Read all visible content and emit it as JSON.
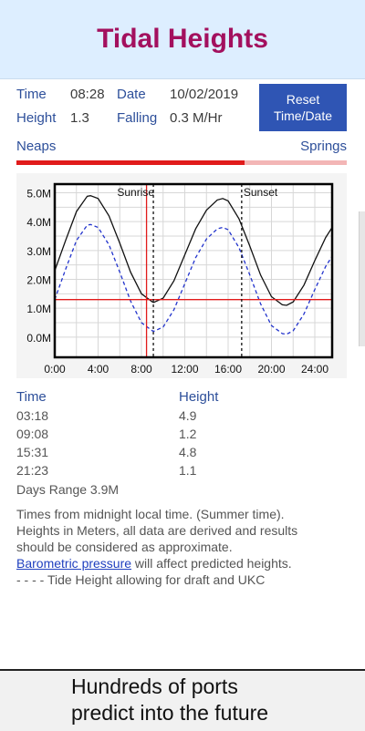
{
  "header": {
    "title": "Tidal Heights"
  },
  "info": {
    "time_label": "Time",
    "time_value": "08:28",
    "date_label": "Date",
    "date_value": "10/02/2019",
    "height_label": "Height",
    "height_value": "1.3",
    "trend_label": "Falling",
    "trend_value": "0.3 M/Hr",
    "reset_line1": "Reset",
    "reset_line2": "Time/Date"
  },
  "tide_cycle": {
    "left_label": "Neaps",
    "right_label": "Springs",
    "position": 0.69
  },
  "chart_data": {
    "type": "line",
    "x_tick_labels": [
      "0:00",
      "4:00",
      "8:00",
      "12:00",
      "16:00",
      "20:00",
      "24:00"
    ],
    "y_tick_labels": [
      "0.0M",
      "1.0M",
      "2.0M",
      "3.0M",
      "4.0M",
      "5.0M"
    ],
    "xlim": [
      0,
      25.6
    ],
    "ylim": [
      -0.7,
      5.3
    ],
    "series": [
      {
        "x": [
          0,
          1,
          2,
          3,
          3.3,
          4,
          5,
          6,
          7,
          8,
          9,
          9.13,
          10,
          11,
          12,
          13,
          14,
          15,
          15.5,
          16,
          17,
          18,
          19,
          20,
          21,
          21.4,
          22,
          23,
          24,
          25,
          25.6
        ],
        "y": [
          2.3,
          3.35,
          4.35,
          4.88,
          4.9,
          4.8,
          4.2,
          3.25,
          2.25,
          1.5,
          1.22,
          1.2,
          1.35,
          1.95,
          2.85,
          3.75,
          4.4,
          4.75,
          4.8,
          4.72,
          4.1,
          3.15,
          2.15,
          1.4,
          1.12,
          1.1,
          1.22,
          1.8,
          2.65,
          3.45,
          3.8
        ]
      },
      {
        "dashed": true,
        "x": [
          0,
          1,
          2,
          3,
          3.3,
          4,
          5,
          6,
          7,
          8,
          9,
          9.13,
          10,
          11,
          12,
          13,
          14,
          15,
          15.5,
          16,
          17,
          18,
          19,
          20,
          21,
          21.4,
          22,
          23,
          24,
          25,
          25.6
        ],
        "y": [
          1.3,
          2.35,
          3.35,
          3.88,
          3.9,
          3.8,
          3.2,
          2.25,
          1.25,
          0.5,
          0.22,
          0.2,
          0.35,
          0.95,
          1.85,
          2.75,
          3.4,
          3.75,
          3.8,
          3.72,
          3.1,
          2.15,
          1.15,
          0.4,
          0.12,
          0.1,
          0.22,
          0.8,
          1.65,
          2.45,
          2.8
        ]
      }
    ],
    "current_time": 8.47,
    "current_height": 1.3,
    "sunrise": {
      "label": "Sunrise",
      "x": 9.1
    },
    "sunset": {
      "label": "Sunset",
      "x": 17.25
    },
    "grid": true
  },
  "table": {
    "time_header": "Time",
    "height_header": "Height",
    "rows": [
      {
        "time": "03:18",
        "height": "4.9"
      },
      {
        "time": "09:08",
        "height": "1.2"
      },
      {
        "time": "15:31",
        "height": "4.8"
      },
      {
        "time": "21:23",
        "height": "1.1"
      }
    ],
    "range_text": "Days Range 3.9M"
  },
  "notes": {
    "line1": "Times from midnight local time. (Summer time).",
    "line2": "Heights in Meters, all data are derived and results",
    "line3": "should be considered as approximate.",
    "link_text": "Barometric pressure",
    "link_suffix": " will affect predicted heights.",
    "legend_line": "- - - - Tide Height allowing for draft and UKC"
  },
  "footer": {
    "line1": "Hundreds of ports",
    "line2": "predict into the future"
  },
  "colors": {
    "title": "#a3105e",
    "accent_blue": "#2f55b4",
    "current_red": "#e11b1b",
    "dashed_blue": "#2233cc"
  }
}
